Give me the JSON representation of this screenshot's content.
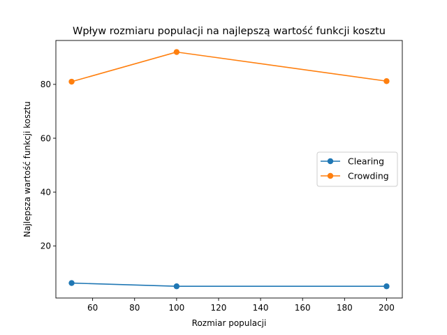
{
  "chart_data": {
    "type": "line",
    "title": "Wpływ rozmiaru populacji na najlepszą wartość funkcji kosztu",
    "xlabel": "Rozmiar populacji",
    "ylabel": "Najlepsza wartość funkcji kosztu",
    "xlim": [
      42.5,
      207.5
    ],
    "ylim": [
      0.65,
      96.3
    ],
    "xticks": [
      60,
      80,
      100,
      120,
      140,
      160,
      180,
      200
    ],
    "yticks": [
      20,
      40,
      60,
      80
    ],
    "x": [
      50,
      100,
      200
    ],
    "series": [
      {
        "name": "Clearing",
        "values": [
          6.2,
          5.0,
          5.0
        ],
        "color": "#1f77b4"
      },
      {
        "name": "Crowding",
        "values": [
          81.0,
          92.0,
          81.2
        ],
        "color": "#ff7f0e"
      }
    ],
    "grid": false,
    "legend_position": "center-right"
  }
}
